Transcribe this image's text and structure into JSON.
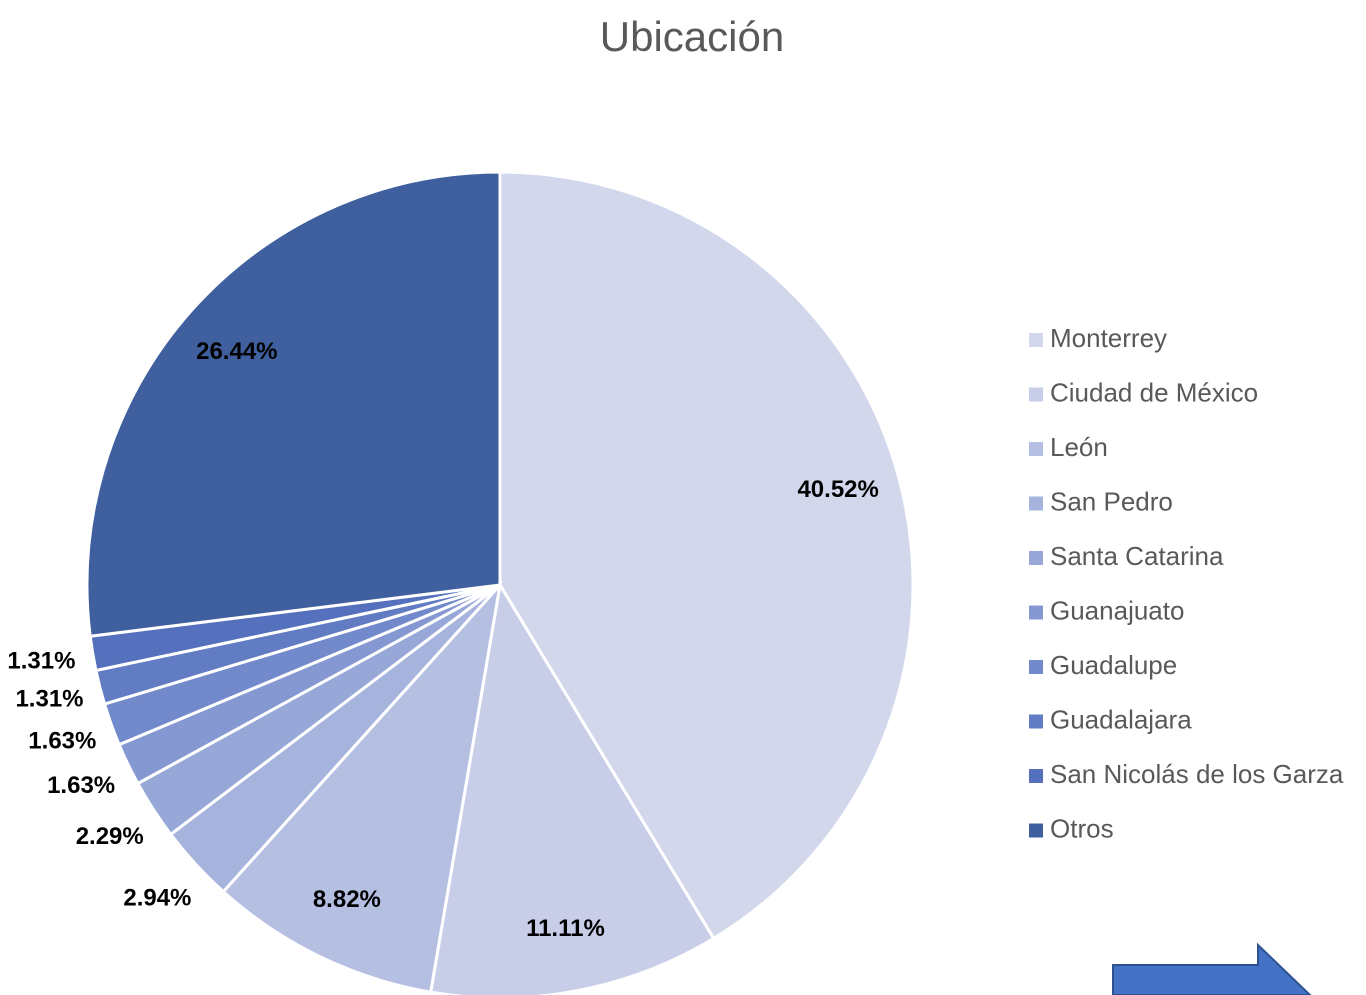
{
  "chart_data": {
    "type": "pie",
    "title": "Ubicación",
    "categories": [
      "Monterrey",
      "Ciudad de México",
      "León",
      "San Pedro",
      "Santa Catarina",
      "Guanajuato",
      "Guadalupe",
      "Guadalajara",
      "San Nicolás de los Garza",
      "Otros"
    ],
    "values": [
      40.52,
      11.11,
      8.82,
      2.94,
      2.29,
      1.63,
      1.63,
      1.31,
      1.31,
      26.44
    ],
    "value_labels": [
      "40.52%",
      "11.11%",
      "8.82%",
      "2.94%",
      "2.29%",
      "1.63%",
      "1.63%",
      "1.31%",
      "1.31%",
      "26.44%"
    ],
    "colors": [
      "#d2d7ec",
      "#c8cee8",
      "#b5bfe2",
      "#a6b3dd",
      "#96a7d8",
      "#8598d2",
      "#728acc",
      "#627cc4",
      "#5571bd",
      "#3f5f9e"
    ],
    "legend": "right"
  }
}
